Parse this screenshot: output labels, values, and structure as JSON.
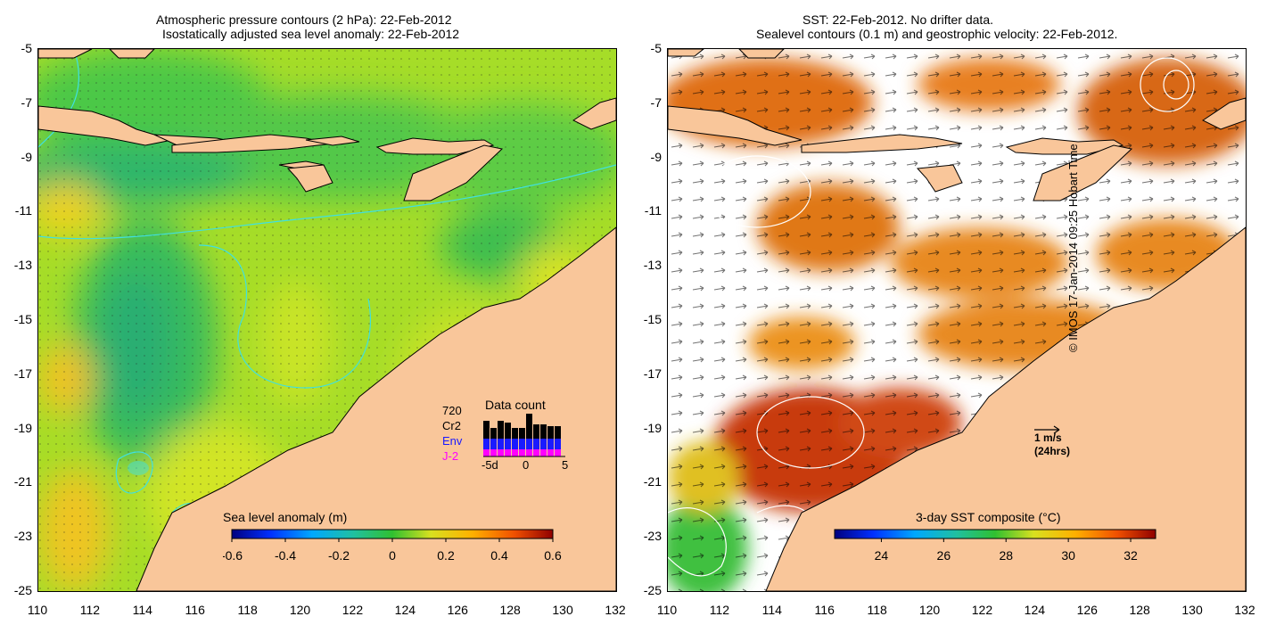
{
  "left_panel": {
    "title_line1": "Atmospheric pressure contours (2 hPa): 22-Feb-2012",
    "title_line2": "Isostatically adjusted sea level anomaly: 22-Feb-2012",
    "colorbar": {
      "label": "Sea level anomaly (m)",
      "min": -0.6,
      "max": 0.6,
      "ticks": [
        "-0.6",
        "-0.4",
        "-0.2",
        "0",
        "0.2",
        "0.4",
        "0.6"
      ]
    },
    "data_count": {
      "title": "Data count",
      "max_label": "720",
      "satellites": [
        {
          "name": "Cr2",
          "color": "#000000"
        },
        {
          "name": "Env",
          "color": "#1a1aff"
        },
        {
          "name": "J-2",
          "color": "#ff00ff"
        }
      ],
      "x_ticks": [
        "-5d",
        "0",
        "5"
      ]
    }
  },
  "right_panel": {
    "title_line1": "SST: 22-Feb-2012. No drifter data.",
    "title_line2": "Sealevel contours (0.1 m) and geostrophic velocity: 22-Feb-2012.",
    "colorbar": {
      "label": "3-day SST composite (°C)",
      "min": 22.5,
      "max": 32.8,
      "ticks": [
        "24",
        "26",
        "28",
        "30",
        "32"
      ]
    },
    "velocity_scale": {
      "label": "1 m/s",
      "sublabel": "(24hrs)"
    }
  },
  "axes": {
    "lat_ticks": [
      "-5",
      "-7",
      "-9",
      "-11",
      "-13",
      "-15",
      "-17",
      "-19",
      "-21",
      "-23",
      "-25"
    ],
    "lon_ticks": [
      "110",
      "112",
      "114",
      "116",
      "118",
      "120",
      "122",
      "124",
      "126",
      "128",
      "130",
      "132"
    ],
    "lat_range": [
      -25,
      -5
    ],
    "lon_range": [
      110,
      132
    ]
  },
  "colors": {
    "land": "#f9c69a",
    "island_outline": "#000000",
    "bathy_contour": "#40e0e0"
  },
  "copyright": "© IMOS 17-Jan-2014 09:25 Hobart Time"
}
